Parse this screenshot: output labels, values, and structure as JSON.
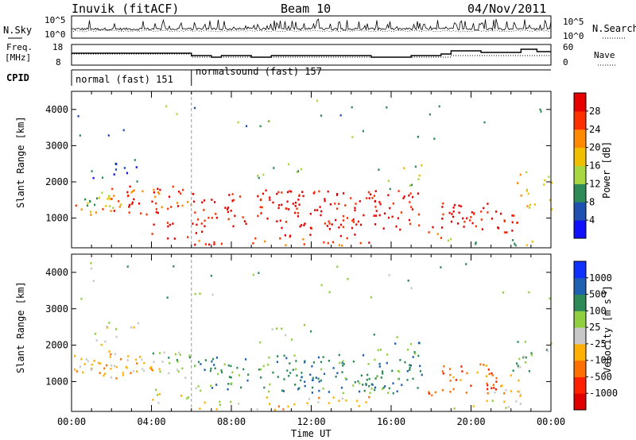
{
  "header": {
    "station": "Inuvik (fitACF)",
    "beam": "Beam 10",
    "date": "04/Nov/2011"
  },
  "top_panels": {
    "nsky_label": "N.Sky",
    "nsky_ticks": [
      "10^5",
      "10^0"
    ],
    "nsearch_label": "N.Search",
    "nsearch_ticks": [
      "10^5",
      "10^0"
    ],
    "freq_label_line1": "Freq.",
    "freq_label_line2": "[MHz]",
    "freq_ticks": [
      "18",
      "8"
    ],
    "nave_label": "Nave",
    "nave_ticks": [
      "60",
      "0"
    ],
    "cpid_label": "CPID",
    "cpid_segments": [
      {
        "label": "normal (fast) 151",
        "start_hour": 0,
        "end_hour": 6
      },
      {
        "label": "normalsound (fast) 157",
        "start_hour": 6,
        "end_hour": 24
      }
    ]
  },
  "chart_data": [
    {
      "type": "heatmap",
      "name": "power",
      "ylabel": "Slant Range [km]",
      "y_ticks": [
        "1000",
        "2000",
        "3000",
        "4000"
      ],
      "ylim": [
        180,
        4500
      ],
      "xlim_hours": [
        0,
        24
      ],
      "colorbar_label": "Power [dB]",
      "colorbar_ticks": [
        "4",
        "8",
        "12",
        "16",
        "20",
        "24",
        "28"
      ],
      "colorbar_colors": [
        "#1010ff",
        "#2050b0",
        "#2e8b57",
        "#a8d840",
        "#f0c000",
        "#ff8a00",
        "#ff3000",
        "#e80000"
      ]
    },
    {
      "type": "heatmap",
      "name": "velocity",
      "ylabel": "Slant Range [km]",
      "y_ticks": [
        "1000",
        "2000",
        "3000",
        "4000"
      ],
      "ylim": [
        180,
        4500
      ],
      "xlim_hours": [
        0,
        24
      ],
      "colorbar_label_prefix": "Velocity  [m s",
      "colorbar_label_sup": "-1",
      "colorbar_label_suffix": "]",
      "colorbar_ticks": [
        "1000",
        "500",
        "100",
        "25",
        "-25",
        "-100",
        "-500",
        "-1000"
      ],
      "colorbar_colors": [
        "#1030ff",
        "#2060b0",
        "#2e8b57",
        "#90d040",
        "#c8c8c8",
        "#ffb000",
        "#ff7000",
        "#ff2000",
        "#e00000"
      ]
    }
  ],
  "x_axis": {
    "label": "Time UT",
    "ticks": [
      "00:00",
      "04:00",
      "08:00",
      "12:00",
      "16:00",
      "20:00",
      "00:00"
    ]
  }
}
